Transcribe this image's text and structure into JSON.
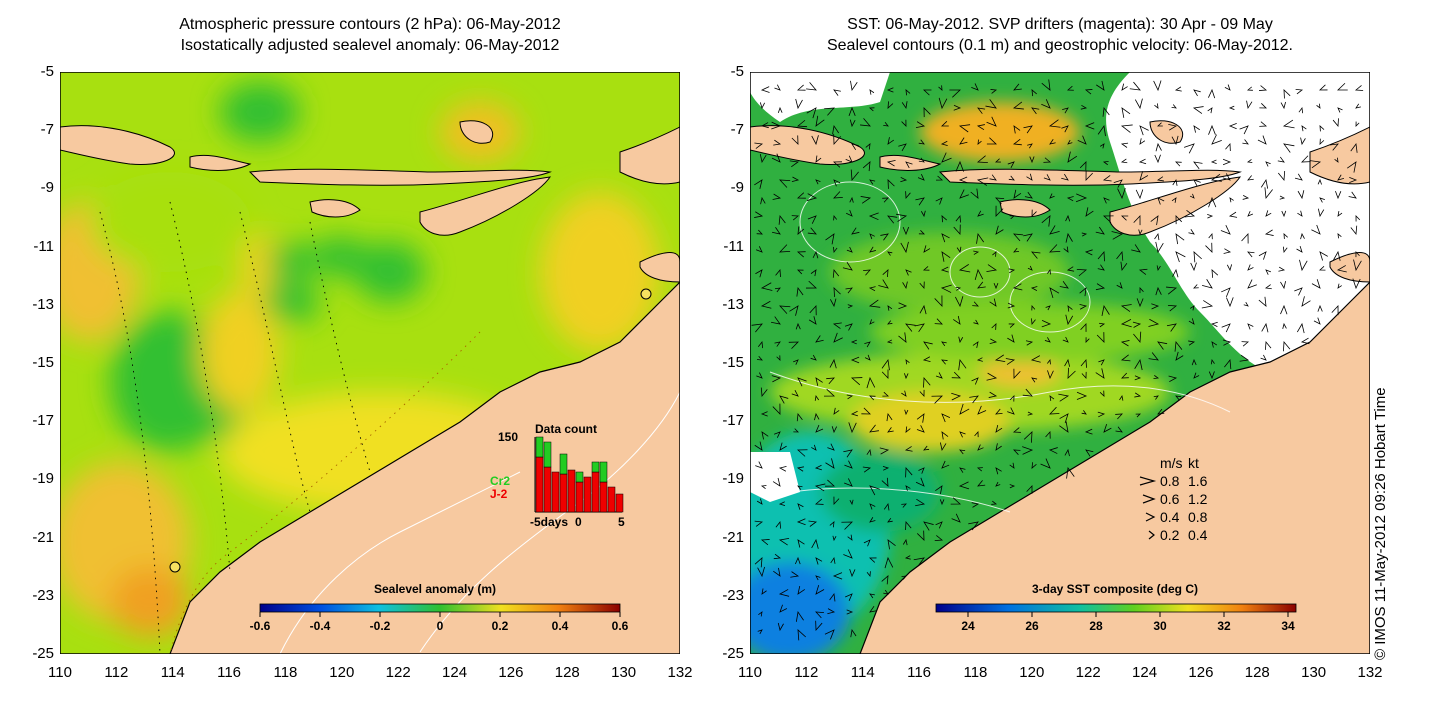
{
  "left_panel": {
    "title_line1": "Atmospheric pressure contours (2 hPa): 06-May-2012",
    "title_line2": "Isostatically adjusted sealevel anomaly: 06-May-2012",
    "colorbar": {
      "label": "Sealevel anomaly (m)",
      "ticks": [
        "-0.6",
        "-0.4",
        "-0.2",
        "0",
        "0.2",
        "0.4",
        "0.6"
      ]
    },
    "inset": {
      "title": "Data count",
      "y_max_label": "150",
      "x_ticks": [
        "-5days",
        "0",
        "5"
      ],
      "series": [
        {
          "name": "Cr2",
          "color": "#22cc22"
        },
        {
          "name": "J-2",
          "color": "#ee0000"
        }
      ]
    }
  },
  "right_panel": {
    "title_line1": "SST: 06-May-2012. SVP drifters (magenta): 30 Apr - 09 May",
    "title_line2": "Sealevel contours (0.1 m) and geostrophic velocity: 06-May-2012.",
    "colorbar": {
      "label": "3-day SST composite (deg C)",
      "ticks": [
        "24",
        "26",
        "28",
        "30",
        "32",
        "34"
      ]
    },
    "velocity_legend": {
      "header_ms": "m/s",
      "header_kt": "kt",
      "rows": [
        {
          "ms": "0.8",
          "kt": "1.6"
        },
        {
          "ms": "0.6",
          "kt": "1.2"
        },
        {
          "ms": "0.4",
          "kt": "0.8"
        },
        {
          "ms": "0.2",
          "kt": "0.4"
        }
      ]
    }
  },
  "axes": {
    "y_ticks": [
      "-5",
      "-7",
      "-9",
      "-11",
      "-13",
      "-15",
      "-17",
      "-19",
      "-21",
      "-23",
      "-25"
    ],
    "x_ticks": [
      "110",
      "112",
      "114",
      "116",
      "118",
      "120",
      "122",
      "124",
      "126",
      "128",
      "130",
      "132"
    ]
  },
  "footer_stamp": "© IMOS 11-May-2012 09:26 Hobart Time",
  "colors": {
    "land": "#f7c9a0",
    "ocean_mid": "#a8e010",
    "ocean_green": "#30c030",
    "ocean_yellow": "#f0e020",
    "ocean_orange": "#f0b020",
    "sst_green": "#20b040",
    "sst_cyan": "#10c0b0"
  }
}
